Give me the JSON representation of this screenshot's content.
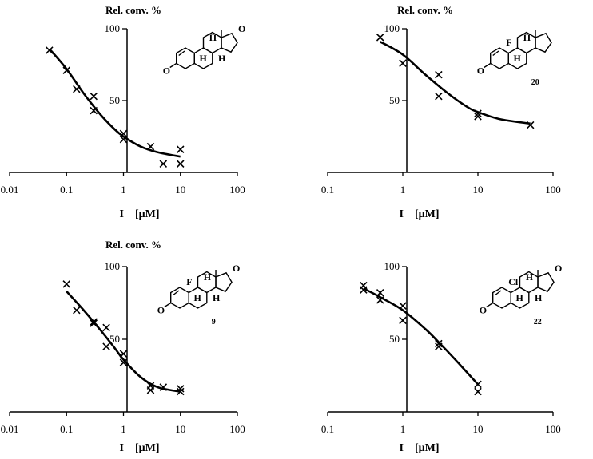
{
  "chart_data": [
    {
      "type": "scatter",
      "panel": "top-left",
      "ylabel": "Rel. conv. %",
      "xlabel_var": "I",
      "xlabel_unit": "[μM]",
      "x_scale": "log",
      "xlim": [
        0.01,
        100
      ],
      "ylim": [
        0,
        100
      ],
      "x_ticks": [
        "0.01",
        "0.1",
        "1",
        "10",
        "100"
      ],
      "y_ticks": [
        "50",
        "100"
      ],
      "points": [
        [
          0.05,
          85
        ],
        [
          0.1,
          71
        ],
        [
          0.15,
          58
        ],
        [
          0.3,
          53
        ],
        [
          0.3,
          43
        ],
        [
          1,
          27
        ],
        [
          1,
          23
        ],
        [
          3,
          18
        ],
        [
          5,
          6
        ],
        [
          10,
          16
        ],
        [
          10,
          6
        ]
      ],
      "fit_curve": [
        [
          0.05,
          86
        ],
        [
          0.1,
          72
        ],
        [
          0.2,
          55
        ],
        [
          0.4,
          40
        ],
        [
          0.7,
          30
        ],
        [
          1,
          25
        ],
        [
          2,
          18
        ],
        [
          4,
          14
        ],
        [
          10,
          11
        ]
      ],
      "structure": {
        "labels": [
          "O",
          "O",
          "H",
          "H",
          "H"
        ],
        "compound": ""
      }
    },
    {
      "type": "scatter",
      "panel": "top-right",
      "ylabel": "Rel. conv. %",
      "xlabel_var": "I",
      "xlabel_unit": "[μM]",
      "x_scale": "log",
      "xlim": [
        0.1,
        100
      ],
      "ylim": [
        0,
        100
      ],
      "x_ticks": [
        "0.1",
        "1",
        "10",
        "100"
      ],
      "y_ticks": [
        "50",
        "100"
      ],
      "points": [
        [
          0.5,
          94
        ],
        [
          1,
          76
        ],
        [
          3,
          68
        ],
        [
          3,
          53
        ],
        [
          10,
          41
        ],
        [
          10,
          39
        ],
        [
          50,
          33
        ]
      ],
      "fit_curve": [
        [
          0.5,
          91
        ],
        [
          1,
          82
        ],
        [
          2,
          68
        ],
        [
          4,
          55
        ],
        [
          7,
          46
        ],
        [
          10,
          42
        ],
        [
          20,
          37
        ],
        [
          50,
          34
        ]
      ],
      "structure": {
        "labels": [
          "O",
          "F",
          "H",
          "H"
        ],
        "compound": "20"
      }
    },
    {
      "type": "scatter",
      "panel": "bottom-left",
      "ylabel": "Rel. conv. %",
      "xlabel_var": "I",
      "xlabel_unit": "[μM]",
      "x_scale": "log",
      "xlim": [
        0.01,
        100
      ],
      "ylim": [
        0,
        100
      ],
      "x_ticks": [
        "0.01",
        "0.1",
        "1",
        "10",
        "100"
      ],
      "y_ticks": [
        "50",
        "100"
      ],
      "points": [
        [
          0.1,
          88
        ],
        [
          0.15,
          70
        ],
        [
          0.3,
          61
        ],
        [
          0.3,
          62
        ],
        [
          0.5,
          58
        ],
        [
          0.5,
          45
        ],
        [
          1,
          40
        ],
        [
          1,
          34
        ],
        [
          3,
          18
        ],
        [
          3,
          15
        ],
        [
          5,
          17
        ],
        [
          10,
          16
        ],
        [
          10,
          14
        ]
      ],
      "fit_curve": [
        [
          0.1,
          83
        ],
        [
          0.2,
          70
        ],
        [
          0.4,
          56
        ],
        [
          0.7,
          44
        ],
        [
          1,
          36
        ],
        [
          2,
          24
        ],
        [
          4,
          17
        ],
        [
          10,
          14
        ]
      ],
      "structure": {
        "labels": [
          "O",
          "O",
          "F",
          "H",
          "H",
          "H"
        ],
        "compound": "9"
      }
    },
    {
      "type": "scatter",
      "panel": "bottom-right",
      "ylabel": "",
      "xlabel_var": "I",
      "xlabel_unit": "[μM]",
      "x_scale": "log",
      "xlim": [
        0.1,
        100
      ],
      "ylim": [
        0,
        100
      ],
      "x_ticks": [
        "0.1",
        "1",
        "10",
        "100"
      ],
      "y_ticks": [
        "50",
        "100"
      ],
      "points": [
        [
          0.3,
          87
        ],
        [
          0.3,
          84
        ],
        [
          0.5,
          82
        ],
        [
          0.5,
          77
        ],
        [
          1,
          73
        ],
        [
          1,
          63
        ],
        [
          3,
          47
        ],
        [
          3,
          45
        ],
        [
          10,
          19
        ],
        [
          10,
          14
        ]
      ],
      "fit_curve": [
        [
          0.3,
          85
        ],
        [
          0.5,
          79
        ],
        [
          1,
          70
        ],
        [
          2,
          57
        ],
        [
          3,
          48
        ],
        [
          5,
          36
        ],
        [
          10,
          19
        ]
      ],
      "structure": {
        "labels": [
          "O",
          "O",
          "Cl",
          "H",
          "H",
          "H"
        ],
        "compound": "22"
      }
    }
  ]
}
